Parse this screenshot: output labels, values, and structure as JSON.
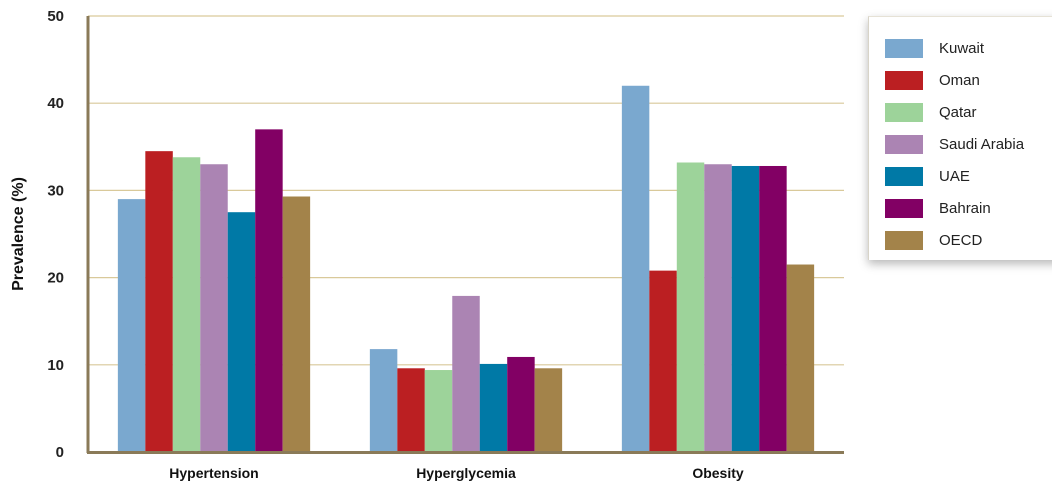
{
  "chart_data": {
    "type": "bar",
    "categories": [
      "Hypertension",
      "Hyperglycemia",
      "Obesity"
    ],
    "series": [
      {
        "name": "Kuwait",
        "color": "#7aa8cf",
        "values": [
          29.0,
          11.8,
          42.0
        ]
      },
      {
        "name": "Oman",
        "color": "#bb1f22",
        "values": [
          34.5,
          9.6,
          20.8
        ]
      },
      {
        "name": "Qatar",
        "color": "#9dd39a",
        "values": [
          33.8,
          9.4,
          33.2
        ]
      },
      {
        "name": "Saudi Arabia",
        "color": "#ab84b3",
        "values": [
          33.0,
          17.9,
          33.0
        ]
      },
      {
        "name": "UAE",
        "color": "#0079a6",
        "values": [
          27.5,
          10.1,
          32.8
        ]
      },
      {
        "name": "Bahrain",
        "color": "#820064",
        "values": [
          37.0,
          10.9,
          32.8
        ]
      },
      {
        "name": "OECD",
        "color": "#a3834a",
        "values": [
          29.3,
          9.6,
          21.5
        ]
      }
    ],
    "ylabel": "Prevalence (%)",
    "ylim": [
      0,
      50
    ],
    "yticks": [
      "0",
      "10",
      "20",
      "30",
      "40",
      "50"
    ],
    "grid": true,
    "legend_position": "top-right",
    "colors": {
      "gridline": "#d9c99a",
      "axis": "#8a7a58"
    }
  }
}
